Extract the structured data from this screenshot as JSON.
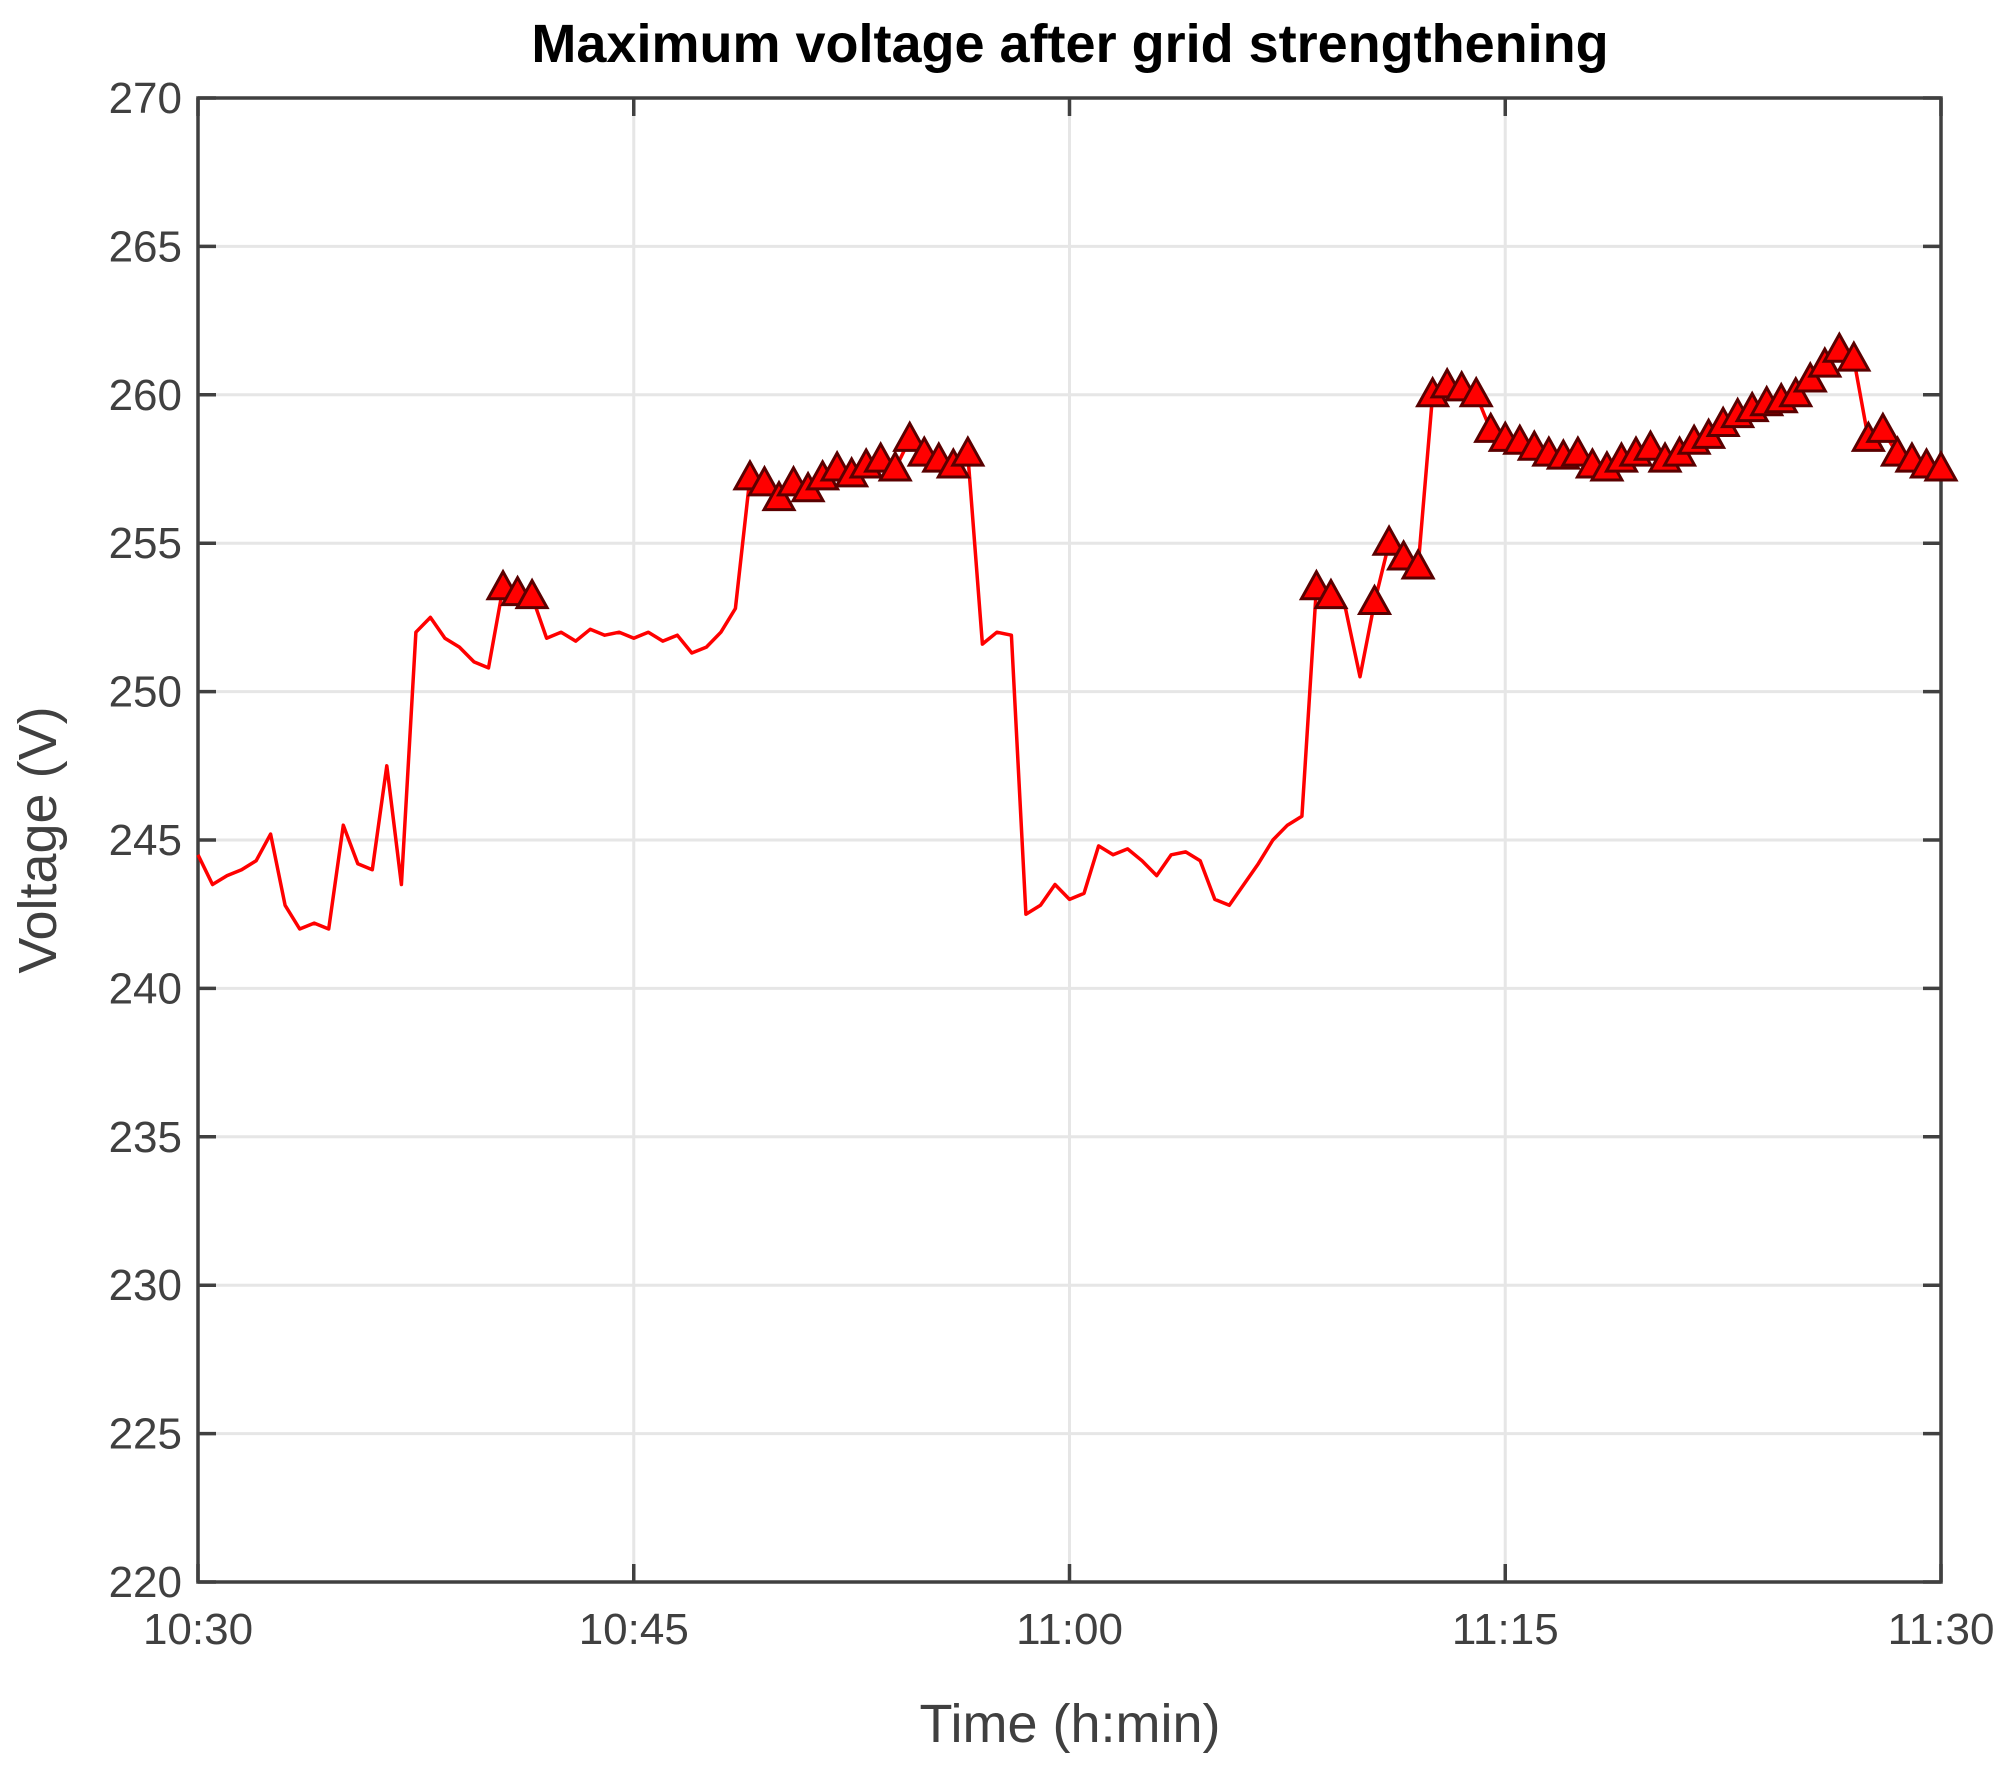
{
  "chart_data": {
    "type": "line",
    "title": "Maximum voltage after grid strengthening",
    "xlabel": "Time (h:min)",
    "ylabel": "Voltage (V)",
    "x_unit": "time of day (h:min)",
    "xlim": [
      "10:30",
      "11:30"
    ],
    "ylim": [
      220,
      270
    ],
    "x_ticks": [
      "10:30",
      "10:45",
      "11:00",
      "11:15",
      "11:30"
    ],
    "y_ticks": [
      220,
      225,
      230,
      235,
      240,
      245,
      250,
      255,
      260,
      265,
      270
    ],
    "grid": true,
    "legend": "none",
    "threshold_note": "triangle markers on samples at or above ~253 V",
    "colors": {
      "line": "#ff0000",
      "marker_fill": "#ff0000",
      "marker_edge": "#5a0000",
      "grid": "#e6e6e6",
      "axes": "#404040"
    },
    "series": [
      {
        "x": [
          "10:30:00",
          "10:30:30",
          "10:31:00",
          "10:31:30",
          "10:32:00",
          "10:32:30",
          "10:33:00",
          "10:33:30",
          "10:34:00",
          "10:34:30",
          "10:35:00",
          "10:35:30",
          "10:36:00",
          "10:36:30",
          "10:37:00",
          "10:37:30",
          "10:38:00",
          "10:38:30",
          "10:39:00",
          "10:39:30",
          "10:40:00",
          "10:40:30",
          "10:41:00",
          "10:41:30",
          "10:42:00",
          "10:42:30",
          "10:43:00",
          "10:43:30",
          "10:44:00",
          "10:44:30",
          "10:45:00",
          "10:45:30",
          "10:46:00",
          "10:46:30",
          "10:47:00",
          "10:47:30",
          "10:48:00",
          "10:48:30",
          "10:49:00",
          "10:49:30",
          "10:50:00",
          "10:50:30",
          "10:51:00",
          "10:51:30",
          "10:52:00",
          "10:52:30",
          "10:53:00",
          "10:53:30",
          "10:54:00",
          "10:54:30",
          "10:55:00",
          "10:55:30",
          "10:56:00",
          "10:56:30",
          "10:57:00",
          "10:57:30",
          "10:58:00",
          "10:58:30",
          "10:59:00",
          "10:59:30",
          "11:00:00",
          "11:00:30",
          "11:01:00",
          "11:01:30",
          "11:02:00",
          "11:02:30",
          "11:03:00",
          "11:03:30",
          "11:04:00",
          "11:04:30",
          "11:05:00",
          "11:05:30",
          "11:06:00",
          "11:06:30",
          "11:07:00",
          "11:07:30",
          "11:08:00",
          "11:08:30",
          "11:09:00",
          "11:09:30",
          "11:10:00",
          "11:10:30",
          "11:11:00",
          "11:11:30",
          "11:12:00",
          "11:12:30",
          "11:13:00",
          "11:13:30",
          "11:14:00",
          "11:14:30",
          "11:15:00",
          "11:15:30",
          "11:16:00",
          "11:16:30",
          "11:17:00",
          "11:17:30",
          "11:18:00",
          "11:18:30",
          "11:19:00",
          "11:19:30",
          "11:20:00",
          "11:20:30",
          "11:21:00",
          "11:21:30",
          "11:22:00",
          "11:22:30",
          "11:23:00",
          "11:23:30",
          "11:24:00",
          "11:24:30",
          "11:25:00",
          "11:25:30",
          "11:26:00",
          "11:26:30",
          "11:27:00",
          "11:27:30",
          "11:28:00",
          "11:28:30",
          "11:29:00",
          "11:29:30",
          "11:30:00"
        ],
        "values": [
          244.5,
          243.5,
          243.8,
          244.0,
          244.3,
          245.2,
          242.8,
          242.0,
          242.2,
          242.0,
          245.5,
          244.2,
          244.0,
          247.5,
          243.5,
          252.0,
          252.5,
          251.8,
          251.5,
          251.0,
          250.8,
          253.5,
          253.3,
          253.2,
          251.8,
          252.0,
          251.7,
          252.1,
          251.9,
          252.0,
          251.8,
          252.0,
          251.7,
          251.9,
          251.3,
          251.5,
          252.0,
          252.8,
          257.2,
          257.0,
          256.5,
          257.0,
          256.8,
          257.2,
          257.5,
          257.3,
          257.6,
          257.8,
          257.5,
          258.5,
          258.0,
          257.8,
          257.6,
          258.0,
          251.6,
          252.0,
          251.9,
          242.5,
          242.8,
          243.5,
          243.0,
          243.2,
          244.8,
          244.5,
          244.7,
          244.3,
          243.8,
          244.5,
          244.6,
          244.3,
          243.0,
          242.8,
          243.5,
          244.2,
          245.0,
          245.5,
          245.8,
          253.5,
          253.2,
          252.8,
          250.5,
          253.0,
          255.0,
          254.5,
          254.2,
          260.0,
          260.3,
          260.2,
          260.0,
          258.8,
          258.5,
          258.4,
          258.2,
          258.0,
          257.9,
          258.0,
          257.6,
          257.5,
          257.8,
          258.0,
          258.2,
          257.8,
          258.0,
          258.4,
          258.6,
          259.0,
          259.3,
          259.5,
          259.7,
          259.8,
          260.0,
          260.5,
          261.0,
          261.5,
          261.2,
          258.5,
          258.8,
          258.0,
          257.8,
          257.6,
          257.5
        ],
        "marker": "triangle"
      }
    ]
  }
}
